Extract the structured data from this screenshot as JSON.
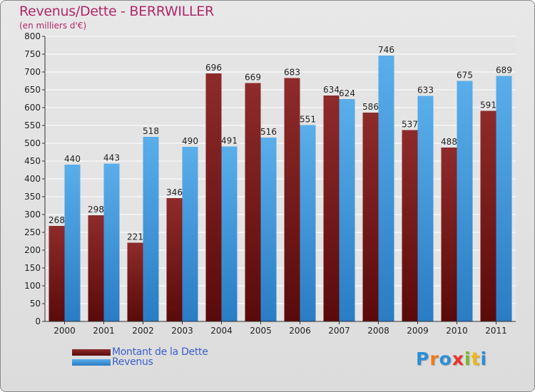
{
  "header": {
    "title": "Revenus/Dette - BERRWILLER",
    "subtitle": "(en milliers d'€)"
  },
  "colors": {
    "title": "#b0286a",
    "dette_top": "#8e2b2b",
    "dette_bottom": "#5a0a0a",
    "revenus_top": "#5aaeea",
    "revenus_bottom": "#2a7cc4",
    "legend_text": "#3a5fcd",
    "axis": "#333333"
  },
  "chart_data": {
    "type": "bar",
    "categories": [
      "2000",
      "2001",
      "2002",
      "2003",
      "2004",
      "2005",
      "2006",
      "2007",
      "2008",
      "2009",
      "2010",
      "2011"
    ],
    "series": [
      {
        "name": "Montant de la Dette",
        "values": [
          268,
          298,
          221,
          346,
          696,
          669,
          683,
          634,
          586,
          537,
          488,
          591
        ]
      },
      {
        "name": "Revenus",
        "values": [
          440,
          443,
          518,
          490,
          491,
          516,
          551,
          624,
          746,
          633,
          675,
          689
        ]
      }
    ],
    "ylim": [
      0,
      800
    ],
    "yticks": [
      0,
      50,
      100,
      150,
      200,
      250,
      300,
      350,
      400,
      450,
      500,
      550,
      600,
      650,
      700,
      750,
      800
    ],
    "grid": true,
    "legend": "bottom-left"
  },
  "legend": {
    "items": [
      {
        "label": "Montant de la Dette"
      },
      {
        "label": "Revenus"
      }
    ]
  },
  "logo": {
    "text": "Proxiti",
    "letter_colors": [
      "#2b8fd6",
      "#f07a1a",
      "#2b8fd6",
      "#e8322a",
      "#7ab82a",
      "#f0b61a",
      "#2b8fd6"
    ]
  }
}
